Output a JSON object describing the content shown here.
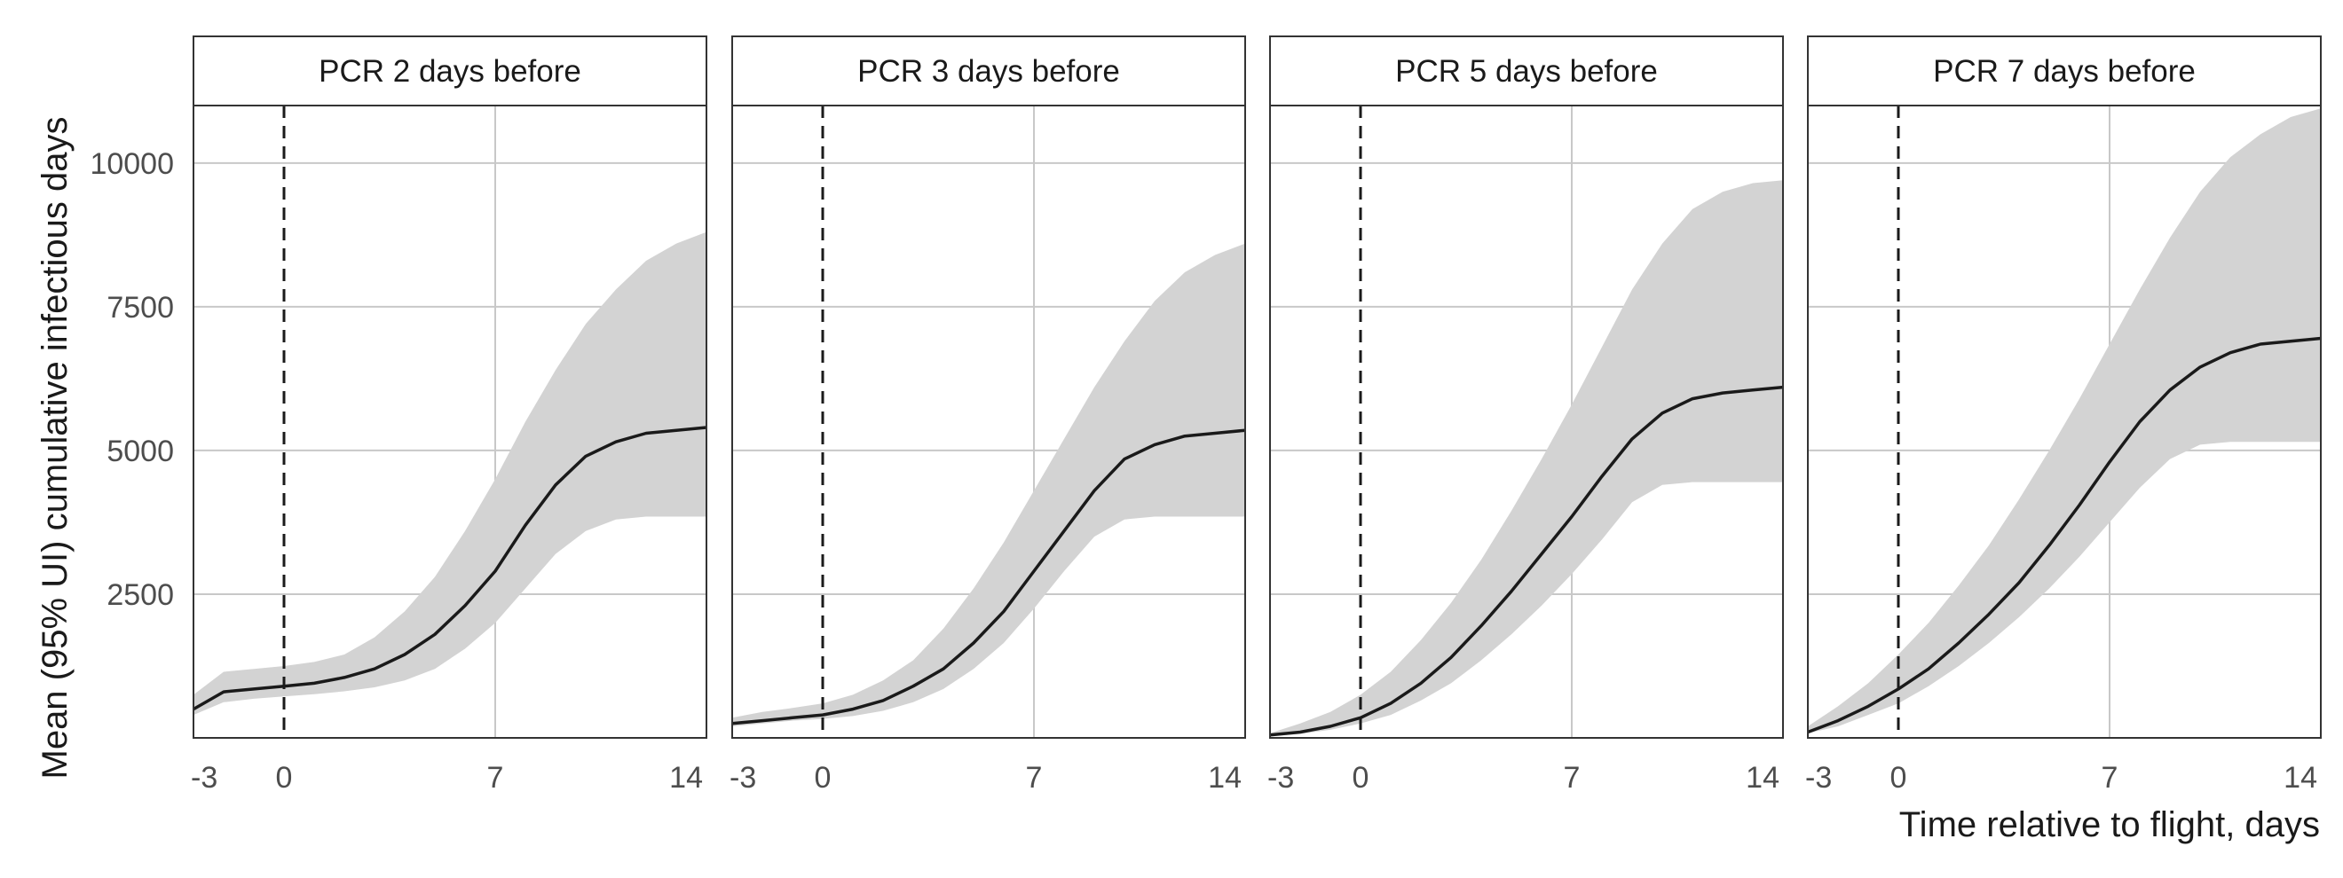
{
  "chart_data": {
    "type": "area",
    "layout": "facets-4-columns",
    "ylabel": "Mean (95% UI) cumulative infectious days",
    "xlabel": "Time relative to flight, days",
    "xlim": [
      -3,
      14
    ],
    "ylim": [
      0,
      11000
    ],
    "x_ticks": [
      -3,
      0,
      7,
      14
    ],
    "y_ticks": [
      2500,
      5000,
      7500,
      10000
    ],
    "grid": true,
    "reference_line_x": 0,
    "colors": {
      "line": "#1a1a1a",
      "band": "#d3d3d3",
      "grid": "#c8c8c8",
      "panel_border": "#333333"
    },
    "x": [
      -3,
      -2,
      -1,
      0,
      1,
      2,
      3,
      4,
      5,
      6,
      7,
      8,
      9,
      10,
      11,
      12,
      13,
      14
    ],
    "panels": [
      {
        "title": "PCR 2 days before",
        "mean": [
          500,
          800,
          850,
          900,
          950,
          1050,
          1200,
          1450,
          1800,
          2300,
          2900,
          3700,
          4400,
          4900,
          5150,
          5300,
          5350,
          5400
        ],
        "lower": [
          400,
          620,
          680,
          720,
          760,
          810,
          880,
          1000,
          1200,
          1550,
          2000,
          2600,
          3200,
          3600,
          3800,
          3850,
          3850,
          3850
        ],
        "upper": [
          750,
          1150,
          1200,
          1250,
          1320,
          1450,
          1750,
          2200,
          2800,
          3600,
          4500,
          5500,
          6400,
          7200,
          7800,
          8300,
          8600,
          8800
        ]
      },
      {
        "title": "PCR 3 days before",
        "mean": [
          250,
          300,
          350,
          400,
          500,
          650,
          900,
          1200,
          1650,
          2200,
          2900,
          3600,
          4300,
          4850,
          5100,
          5250,
          5300,
          5350
        ],
        "lower": [
          200,
          250,
          300,
          330,
          380,
          470,
          620,
          850,
          1200,
          1650,
          2250,
          2900,
          3500,
          3800,
          3850,
          3850,
          3850,
          3850
        ],
        "upper": [
          350,
          450,
          520,
          600,
          750,
          1000,
          1350,
          1900,
          2600,
          3400,
          4300,
          5200,
          6100,
          6900,
          7600,
          8100,
          8400,
          8600
        ]
      },
      {
        "title": "PCR 5 days before",
        "mean": [
          50,
          100,
          200,
          350,
          600,
          950,
          1400,
          1950,
          2550,
          3200,
          3850,
          4550,
          5200,
          5650,
          5900,
          6000,
          6050,
          6100
        ],
        "lower": [
          30,
          70,
          140,
          250,
          400,
          650,
          950,
          1350,
          1800,
          2300,
          2850,
          3450,
          4100,
          4400,
          4450,
          4450,
          4450,
          4450
        ],
        "upper": [
          80,
          250,
          450,
          750,
          1150,
          1700,
          2350,
          3100,
          3950,
          4850,
          5800,
          6800,
          7800,
          8600,
          9200,
          9500,
          9650,
          9700
        ]
      },
      {
        "title": "PCR 7 days before",
        "mean": [
          100,
          300,
          550,
          850,
          1200,
          1650,
          2150,
          2700,
          3350,
          4050,
          4800,
          5500,
          6050,
          6450,
          6700,
          6850,
          6900,
          6950
        ],
        "lower": [
          80,
          200,
          400,
          600,
          900,
          1250,
          1650,
          2100,
          2600,
          3150,
          3750,
          4350,
          4850,
          5100,
          5150,
          5150,
          5150,
          5150
        ],
        "upper": [
          200,
          550,
          950,
          1450,
          2000,
          2650,
          3350,
          4150,
          5000,
          5900,
          6850,
          7800,
          8700,
          9500,
          10100,
          10500,
          10800,
          10950
        ]
      }
    ]
  }
}
